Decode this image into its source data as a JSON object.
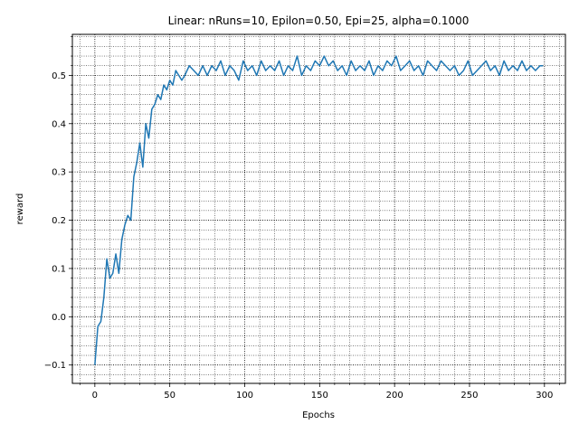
{
  "chart_data": {
    "type": "line",
    "title": "Linear: nRuns=10, Epilon=0.50, Epi=25, alpha=0.1000",
    "xlabel": "Epochs",
    "ylabel": "reward",
    "xlim": [
      -15,
      314
    ],
    "ylim": [
      -0.138,
      0.585
    ],
    "x_ticks": [
      0,
      50,
      100,
      150,
      200,
      250,
      300
    ],
    "x_tick_labels": [
      "0",
      "50",
      "100",
      "150",
      "200",
      "250",
      "300"
    ],
    "y_ticks": [
      -0.1,
      0.0,
      0.1,
      0.2,
      0.3,
      0.4,
      0.5
    ],
    "y_tick_labels": [
      "−0.1",
      "0.0",
      "0.1",
      "0.2",
      "0.3",
      "0.4",
      "0.5"
    ],
    "x_minor_step": 10,
    "y_minor_step": 0.02,
    "grid": "major and minor, dotted",
    "line_color": "#1f77b4",
    "series": [
      {
        "x": [
          0,
          2,
          4,
          6,
          8,
          10,
          12,
          14,
          16,
          18,
          20,
          22,
          24,
          26,
          28,
          30,
          32,
          34,
          36,
          38,
          40,
          42,
          44,
          46,
          48,
          50,
          52,
          54,
          56,
          58,
          60,
          63,
          66,
          69,
          72,
          75,
          78,
          81,
          84,
          87,
          90,
          93,
          96,
          99,
          102,
          105,
          108,
          111,
          114,
          117,
          120,
          123,
          126,
          129,
          132,
          135,
          138,
          141,
          144,
          147,
          150,
          153,
          156,
          159,
          162,
          165,
          168,
          171,
          174,
          177,
          180,
          183,
          186,
          189,
          192,
          195,
          198,
          201,
          204,
          207,
          210,
          213,
          216,
          219,
          222,
          225,
          228,
          231,
          234,
          237,
          240,
          243,
          246,
          249,
          252,
          255,
          258,
          261,
          264,
          267,
          270,
          273,
          276,
          279,
          282,
          285,
          288,
          291,
          294,
          297,
          299
        ],
        "y": [
          -0.1,
          -0.02,
          -0.01,
          0.04,
          0.12,
          0.08,
          0.09,
          0.13,
          0.09,
          0.16,
          0.19,
          0.21,
          0.2,
          0.29,
          0.32,
          0.36,
          0.31,
          0.4,
          0.37,
          0.43,
          0.44,
          0.46,
          0.45,
          0.48,
          0.47,
          0.49,
          0.48,
          0.51,
          0.5,
          0.49,
          0.5,
          0.52,
          0.51,
          0.5,
          0.52,
          0.5,
          0.52,
          0.51,
          0.53,
          0.5,
          0.52,
          0.51,
          0.49,
          0.53,
          0.51,
          0.52,
          0.5,
          0.53,
          0.51,
          0.52,
          0.51,
          0.53,
          0.5,
          0.52,
          0.51,
          0.54,
          0.5,
          0.52,
          0.51,
          0.53,
          0.52,
          0.54,
          0.52,
          0.53,
          0.51,
          0.52,
          0.5,
          0.53,
          0.51,
          0.52,
          0.51,
          0.53,
          0.5,
          0.52,
          0.51,
          0.53,
          0.52,
          0.54,
          0.51,
          0.52,
          0.53,
          0.51,
          0.52,
          0.5,
          0.53,
          0.52,
          0.51,
          0.53,
          0.52,
          0.51,
          0.52,
          0.5,
          0.51,
          0.53,
          0.5,
          0.51,
          0.52,
          0.53,
          0.51,
          0.52,
          0.5,
          0.53,
          0.51,
          0.52,
          0.51,
          0.53,
          0.51,
          0.52,
          0.51,
          0.52,
          0.52
        ]
      }
    ]
  }
}
